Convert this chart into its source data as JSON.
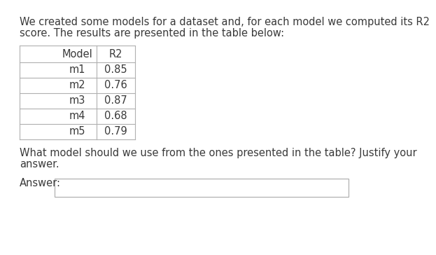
{
  "intro_text_line1": "We created some models for a dataset and, for each model we computed its R2",
  "intro_text_line2": "score. The results are presented in the table below:",
  "table_headers": [
    "Model",
    "R2"
  ],
  "table_rows": [
    [
      "m1",
      "0.85"
    ],
    [
      "m2",
      "0.76"
    ],
    [
      "m3",
      "0.87"
    ],
    [
      "m4",
      "0.68"
    ],
    [
      "m5",
      "0.79"
    ]
  ],
  "question_line1": "What model should we use from the ones presented in the table? Justify your",
  "question_line2": "answer.",
  "answer_label": "Answer:",
  "bg_color": "#ffffff",
  "text_color": "#3a3a3a",
  "table_line_color": "#b0b0b0",
  "font_size": 10.5,
  "table_font_size": 10.5,
  "table_header_color": "#cc4400"
}
